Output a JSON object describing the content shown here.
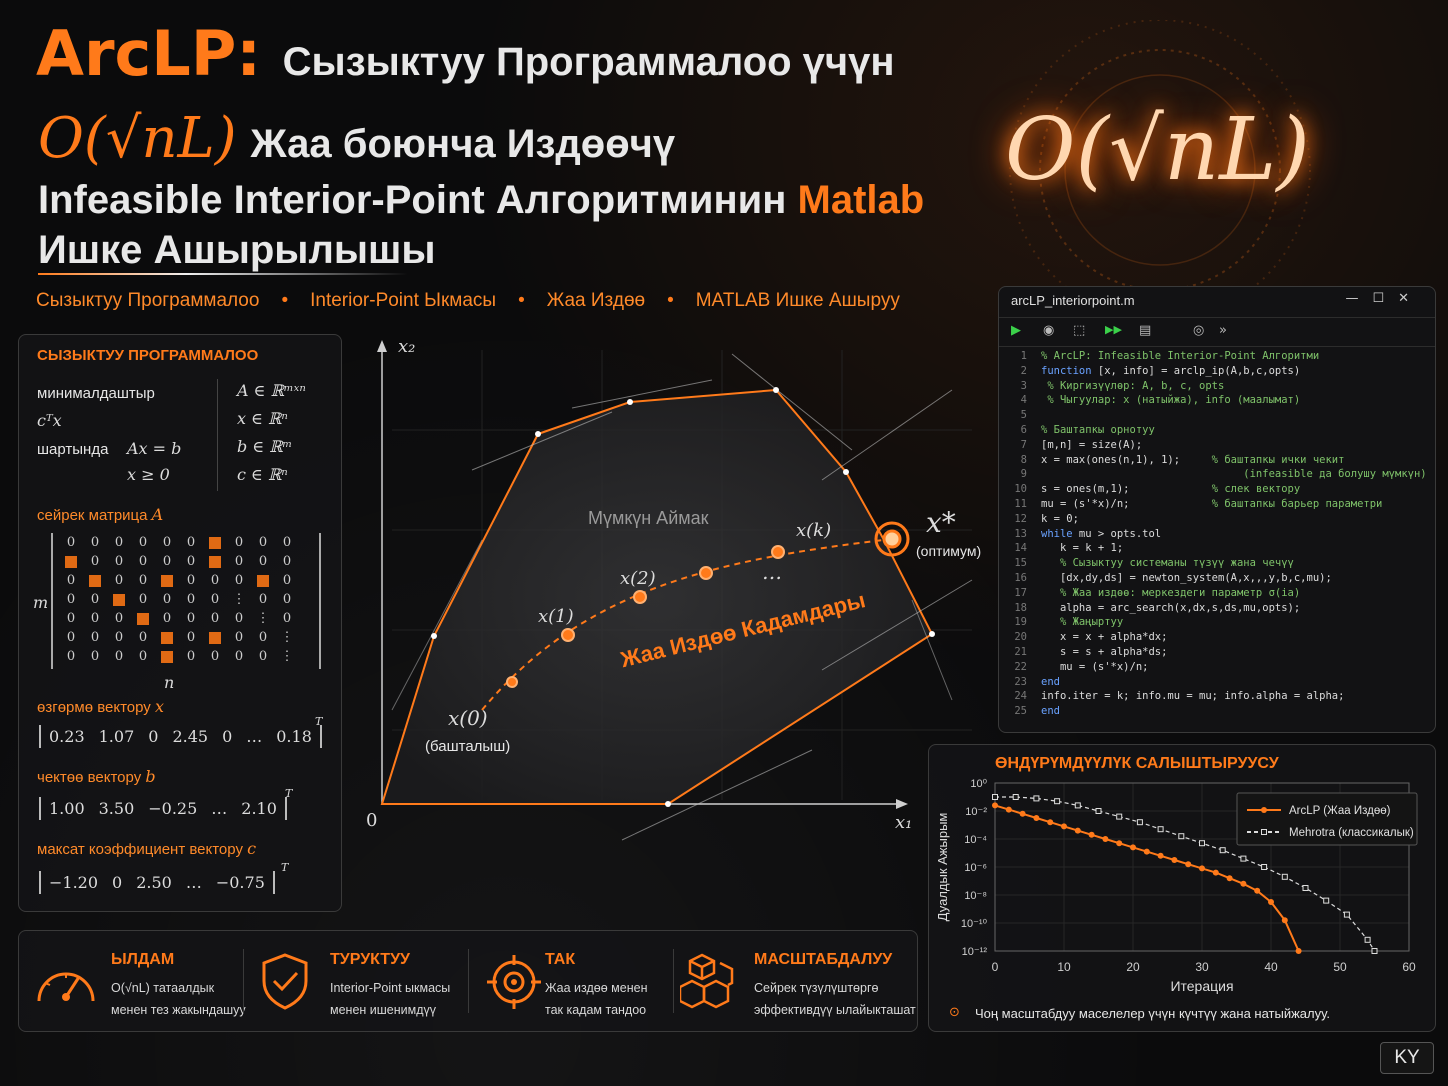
{
  "title": {
    "line1_brand": "ArcLP:",
    "line1_rest": "Сызыктуу Программалоо үчүн",
    "line2_math": "O(√nL)",
    "line2_rest": "Жаа боюнча Издөөчү",
    "line3_a": "Infeasible Interior-Point Алгоритминин",
    "line3_b": "Matlab",
    "line4": "Ишке Ашырылышы"
  },
  "tags": [
    "Сызыктуу Программалоо",
    "Interior-Point Ыкмасы",
    "Жаа Издөө",
    "MATLAB Ишке Ашыруу"
  ],
  "complexity_badge": "O(√nL)",
  "lp_panel": {
    "header": "СЫЗЫКТУУ ПРОГРАММАЛОО",
    "minimize_label": "минималдаштыр",
    "objective": "cᵀx",
    "subject_label": "шартында",
    "constraint1": "Ax = b",
    "constraint2": "x ≥ 0",
    "domains": [
      "A ∈ ℝᵐˣⁿ",
      "x ∈ ℝⁿ",
      "b ∈ ℝᵐ",
      "c ∈ ℝⁿ"
    ],
    "sparse_label": "сейрек матрица",
    "sparse_symbol": "A",
    "m_label": "m",
    "n_label": "n",
    "matrix": [
      [
        "0",
        "0",
        "0",
        "0",
        "0",
        "0",
        "■",
        "0",
        "0",
        "0"
      ],
      [
        "■",
        "0",
        "0",
        "0",
        "0",
        "0",
        "■",
        "0",
        "0",
        "0"
      ],
      [
        "0",
        "■",
        "0",
        "0",
        "■",
        "0",
        "0",
        "0",
        "■",
        "0"
      ],
      [
        "0",
        "0",
        "■",
        "0",
        "0",
        "0",
        "0",
        "⋮",
        "0",
        "0"
      ],
      [
        "0",
        "0",
        "0",
        "■",
        "0",
        "0",
        "0",
        "0",
        "⋮",
        "0"
      ],
      [
        "0",
        "0",
        "0",
        "0",
        "■",
        "0",
        "■",
        "0",
        "0",
        "⋮"
      ],
      [
        "0",
        "0",
        "0",
        "0",
        "■",
        "0",
        "0",
        "0",
        "0",
        "⋮"
      ]
    ],
    "x_label": "өзгөрмө вектору",
    "x_symbol": "x",
    "x_values": [
      "0.23",
      "1.07",
      "0",
      "2.45",
      "0",
      "…",
      "0.18"
    ],
    "b_label": "чектөө вектору",
    "b_symbol": "b",
    "b_values": [
      "1.00",
      "3.50",
      "−0.25",
      "…",
      "2.10"
    ],
    "c_label": "максат коэффициент вектору",
    "c_symbol": "c",
    "c_values": [
      "−1.20",
      "0",
      "2.50",
      "…",
      "−0.75"
    ],
    "transpose": "T"
  },
  "diagram": {
    "axis_x": "x₁",
    "axis_y": "x₂",
    "origin": "0",
    "region_label": "Мүмкүн Аймак",
    "path_label": "Жаа Издөө Кадамдары",
    "x0": "x(0)",
    "x0_note": "(башталыш)",
    "x1": "x(1)",
    "x2": "x(2)",
    "xk": "x(k)",
    "dots": "…",
    "xstar": "x*",
    "xstar_note": "(оптимум)"
  },
  "editor": {
    "filename": "arcLP_interiorpoint.m",
    "controls": "—  ☐  ✕",
    "toolbar": [
      "▶",
      "◉",
      "⬚",
      "▶▶",
      "▤",
      "◎",
      "»"
    ],
    "lines": [
      {
        "n": "1",
        "t": "% ArcLP: Infeasible Interior-Point Алгоритми",
        "c": "cm"
      },
      {
        "n": "2",
        "t": "function [x, info] = arclp_ip(A,b,c,opts)",
        "c": "kwline"
      },
      {
        "n": "3",
        "t": " % Киргизүүлөр: A, b, c, opts",
        "c": "cm"
      },
      {
        "n": "4",
        "t": " % Чыгуулар: x (натыйжа), info (маалымат)",
        "c": "cm"
      },
      {
        "n": "5",
        "t": "",
        "c": ""
      },
      {
        "n": "6",
        "t": "% Баштапкы орнотуу",
        "c": "cm"
      },
      {
        "n": "7",
        "t": "[m,n] = size(A);",
        "c": ""
      },
      {
        "n": "8",
        "t": "x = max(ones(n,1), 1);",
        "c": "",
        "cm": "     % баштапкы ички чекит"
      },
      {
        "n": "9",
        "t": "",
        "c": "",
        "cm": "                                (infeasible да болушу мүмкүн)"
      },
      {
        "n": "10",
        "t": "s = ones(m,1);",
        "c": "",
        "cm": "             % слек вектору"
      },
      {
        "n": "11",
        "t": "mu = (s'*x)/n;",
        "c": "",
        "cm": "             % баштапкы барьер параметри"
      },
      {
        "n": "12",
        "t": "k = 0;",
        "c": ""
      },
      {
        "n": "13",
        "t": "while mu > opts.tol",
        "c": "kwline"
      },
      {
        "n": "14",
        "t": "   k = k + 1;",
        "c": ""
      },
      {
        "n": "15",
        "t": "   % Сызыктуу системаны түзүү жана чечүү",
        "c": "cm"
      },
      {
        "n": "16",
        "t": "   [dx,dy,ds] = newton_system(A,x,,,y,b,c,mu);",
        "c": ""
      },
      {
        "n": "17",
        "t": "   % Жаа издөө: меркездеги параметр σ(ia)",
        "c": "cm"
      },
      {
        "n": "18",
        "t": "   alpha = arc_search(x,dx,s,ds,mu,opts);",
        "c": ""
      },
      {
        "n": "19",
        "t": "   % Жаңыртуу",
        "c": "cm"
      },
      {
        "n": "20",
        "t": "   x = x + alpha*dx;",
        "c": ""
      },
      {
        "n": "21",
        "t": "   s = s + alpha*ds;",
        "c": ""
      },
      {
        "n": "22",
        "t": "   mu = (s'*x)/n;",
        "c": ""
      },
      {
        "n": "23",
        "t": "end",
        "c": "kw"
      },
      {
        "n": "24",
        "t": "info.iter = k; info.mu = mu; info.alpha = alpha;",
        "c": ""
      },
      {
        "n": "25",
        "t": "end",
        "c": "kw"
      }
    ]
  },
  "features": [
    {
      "icon": "speedometer-icon",
      "title": "ЫЛДАМ",
      "l1": "O(√nL) татаалдык",
      "l2": "менен тез жакындашуу"
    },
    {
      "icon": "shield-check-icon",
      "title": "ТУРУКТУУ",
      "l1": "Interior-Point ыкмасы",
      "l2": "менен ишенимдүү"
    },
    {
      "icon": "target-icon",
      "title": "ТАК",
      "l1": "Жаа издөө менен",
      "l2": "так кадам тандоо"
    },
    {
      "icon": "cubes-icon",
      "title": "МАСШТАБДАЛУУ",
      "l1": "Сейрек түзүлүштөргө",
      "l2": "эффективдүү ылайыкташат"
    }
  ],
  "perf": {
    "header": "ӨНДҮРҮМДҮҮЛҮК САЛЫШТЫРУУСУ",
    "footer": "Чоң масштабдуу маселелер үчүн күчтүү жана натыйжалуу."
  },
  "chart_data": {
    "type": "line",
    "title": "ӨНДҮРҮМДҮҮЛҮК САЛЫШТЫРУУСУ",
    "xlabel": "Итерация",
    "ylabel": "Дуалдык Ажырым",
    "xlim": [
      0,
      60
    ],
    "ylim_exp": [
      -12,
      0
    ],
    "y_scale": "log",
    "x_ticks": [
      "0",
      "10",
      "20",
      "30",
      "40",
      "50",
      "60"
    ],
    "y_ticks": [
      "10⁰",
      "10⁻²",
      "10⁻⁴",
      "10⁻⁶",
      "10⁻⁸",
      "10⁻¹⁰",
      "10⁻¹²"
    ],
    "legend_position": "top-right",
    "series": [
      {
        "name": "ArcLP (Жаа Издөө)",
        "color": "#ff7a1a",
        "x": [
          0,
          2,
          4,
          6,
          8,
          10,
          12,
          14,
          16,
          18,
          20,
          22,
          24,
          26,
          28,
          30,
          32,
          34,
          36,
          38,
          40,
          42,
          44
        ],
        "y_exp": [
          -1.6,
          -1.9,
          -2.2,
          -2.5,
          -2.8,
          -3.1,
          -3.4,
          -3.7,
          -4.0,
          -4.3,
          -4.6,
          -4.9,
          -5.2,
          -5.5,
          -5.8,
          -6.1,
          -6.4,
          -6.8,
          -7.2,
          -7.7,
          -8.5,
          -9.8,
          -12
        ]
      },
      {
        "name": "Mehrotra (классикалык)",
        "color": "#dddddd",
        "x": [
          0,
          3,
          6,
          9,
          12,
          15,
          18,
          21,
          24,
          27,
          30,
          33,
          36,
          39,
          42,
          45,
          48,
          51,
          54,
          55
        ],
        "y_exp": [
          -1.0,
          -1.0,
          -1.1,
          -1.3,
          -1.6,
          -2.0,
          -2.4,
          -2.8,
          -3.3,
          -3.8,
          -4.3,
          -4.8,
          -5.4,
          -6.0,
          -6.7,
          -7.5,
          -8.4,
          -9.4,
          -11.2,
          -12
        ]
      }
    ]
  },
  "footer_badge": "KY"
}
